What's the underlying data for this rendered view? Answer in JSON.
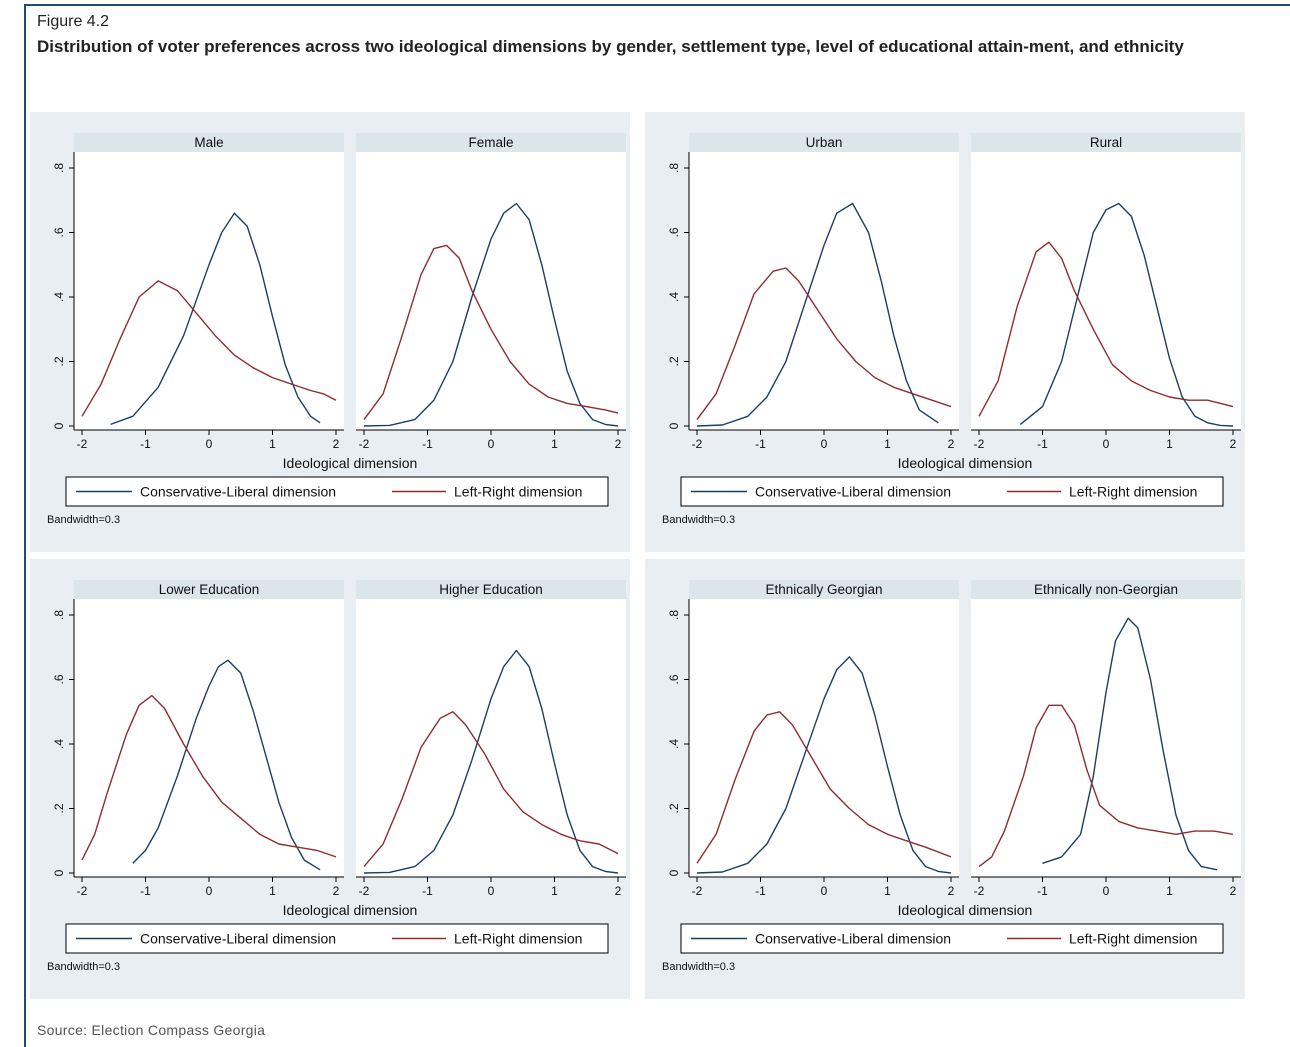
{
  "figure": {
    "label": "Figure 4.2",
    "title": "Distribution of voter preferences across two ideological dimensions by gender, settlement type, level of educational attain-ment, and ethnicity",
    "source": "Source: Election Compass Georgia"
  },
  "colors": {
    "background": "#e8eef1",
    "strip": "#dbe5ea",
    "conservative_liberal": "#1a3f66",
    "left_right": "#8f2d2d",
    "frame": "#1f4e6e"
  },
  "chart_data": [
    {
      "type": "line",
      "group": "gender",
      "xlabel": "Ideological dimension",
      "legend": [
        "Conservative-Liberal dimension",
        "Left-Right dimension"
      ],
      "note": "Bandwidth=0.3",
      "xlim": [
        -2,
        2
      ],
      "ylim": [
        0,
        0.8
      ],
      "xticks": [
        "-2",
        "-1",
        "0",
        "1",
        "2"
      ],
      "yticks": [
        "0",
        ".2",
        ".4",
        ".6",
        ".8"
      ],
      "panels": [
        {
          "title": "Male",
          "series": [
            {
              "name": "Conservative-Liberal dimension",
              "x": [
                -1.55,
                -1.2,
                -0.8,
                -0.4,
                0.0,
                0.2,
                0.4,
                0.6,
                0.8,
                1.0,
                1.2,
                1.4,
                1.6,
                1.75
              ],
              "y": [
                0.005,
                0.03,
                0.12,
                0.28,
                0.5,
                0.6,
                0.66,
                0.62,
                0.5,
                0.34,
                0.19,
                0.09,
                0.03,
                0.01
              ]
            },
            {
              "name": "Left-Right dimension",
              "x": [
                -2.0,
                -1.7,
                -1.4,
                -1.1,
                -0.8,
                -0.5,
                -0.2,
                0.1,
                0.4,
                0.7,
                1.0,
                1.3,
                1.6,
                1.8,
                2.0
              ],
              "y": [
                0.03,
                0.13,
                0.27,
                0.4,
                0.45,
                0.42,
                0.35,
                0.28,
                0.22,
                0.18,
                0.15,
                0.13,
                0.11,
                0.1,
                0.08
              ]
            }
          ]
        },
        {
          "title": "Female",
          "series": [
            {
              "name": "Conservative-Liberal dimension",
              "x": [
                -2.0,
                -1.6,
                -1.2,
                -0.9,
                -0.6,
                -0.3,
                0.0,
                0.2,
                0.4,
                0.6,
                0.8,
                1.0,
                1.2,
                1.4,
                1.6,
                1.8,
                2.0
              ],
              "y": [
                0.0,
                0.002,
                0.02,
                0.08,
                0.2,
                0.4,
                0.58,
                0.66,
                0.69,
                0.64,
                0.5,
                0.33,
                0.17,
                0.07,
                0.02,
                0.005,
                0.0
              ]
            },
            {
              "name": "Left-Right dimension",
              "x": [
                -2.0,
                -1.7,
                -1.4,
                -1.1,
                -0.9,
                -0.7,
                -0.5,
                -0.3,
                0.0,
                0.3,
                0.6,
                0.9,
                1.2,
                1.5,
                1.8,
                2.0
              ],
              "y": [
                0.02,
                0.1,
                0.28,
                0.47,
                0.55,
                0.56,
                0.52,
                0.42,
                0.3,
                0.2,
                0.13,
                0.09,
                0.07,
                0.06,
                0.05,
                0.04
              ]
            }
          ]
        }
      ]
    },
    {
      "type": "line",
      "group": "settlement type",
      "xlabel": "Ideological dimension",
      "legend": [
        "Conservative-Liberal dimension",
        "Left-Right dimension"
      ],
      "note": "Bandwidth=0.3",
      "xlim": [
        -2,
        2
      ],
      "ylim": [
        0,
        0.8
      ],
      "xticks": [
        "-2",
        "-1",
        "0",
        "1",
        "2"
      ],
      "yticks": [
        "0",
        ".2",
        ".4",
        ".6",
        ".8"
      ],
      "panels": [
        {
          "title": "Urban",
          "series": [
            {
              "name": "Conservative-Liberal dimension",
              "x": [
                -2.0,
                -1.6,
                -1.2,
                -0.9,
                -0.6,
                -0.3,
                0.0,
                0.2,
                0.45,
                0.7,
                0.9,
                1.1,
                1.3,
                1.5,
                1.8
              ],
              "y": [
                0.0,
                0.003,
                0.03,
                0.09,
                0.2,
                0.38,
                0.56,
                0.66,
                0.69,
                0.6,
                0.45,
                0.28,
                0.14,
                0.05,
                0.01
              ]
            },
            {
              "name": "Left-Right dimension",
              "x": [
                -2.0,
                -1.7,
                -1.4,
                -1.1,
                -0.8,
                -0.6,
                -0.4,
                -0.1,
                0.2,
                0.5,
                0.8,
                1.1,
                1.4,
                1.7,
                2.0
              ],
              "y": [
                0.02,
                0.1,
                0.25,
                0.41,
                0.48,
                0.49,
                0.45,
                0.36,
                0.27,
                0.2,
                0.15,
                0.12,
                0.1,
                0.08,
                0.06
              ]
            }
          ]
        },
        {
          "title": "Rural",
          "series": [
            {
              "name": "Conservative-Liberal dimension",
              "x": [
                -1.35,
                -1.0,
                -0.7,
                -0.4,
                -0.2,
                0.0,
                0.2,
                0.4,
                0.6,
                0.8,
                1.0,
                1.2,
                1.4,
                1.6,
                1.8,
                2.0
              ],
              "y": [
                0.005,
                0.06,
                0.2,
                0.44,
                0.6,
                0.67,
                0.69,
                0.65,
                0.53,
                0.37,
                0.21,
                0.09,
                0.03,
                0.01,
                0.002,
                0.0
              ]
            },
            {
              "name": "Left-Right dimension",
              "x": [
                -2.0,
                -1.7,
                -1.4,
                -1.1,
                -0.9,
                -0.7,
                -0.5,
                -0.2,
                0.1,
                0.4,
                0.7,
                1.0,
                1.3,
                1.6,
                2.0
              ],
              "y": [
                0.03,
                0.14,
                0.37,
                0.54,
                0.57,
                0.52,
                0.42,
                0.3,
                0.19,
                0.14,
                0.11,
                0.09,
                0.08,
                0.08,
                0.06
              ]
            }
          ]
        }
      ]
    },
    {
      "type": "line",
      "group": "level of educational attainment",
      "xlabel": "Ideological dimension",
      "legend": [
        "Conservative-Liberal dimension",
        "Left-Right dimension"
      ],
      "note": "Bandwidth=0.3",
      "xlim": [
        -2,
        2
      ],
      "ylim": [
        0,
        0.8
      ],
      "xticks": [
        "-2",
        "-1",
        "0",
        "1",
        "2"
      ],
      "yticks": [
        "0",
        ".2",
        ".4",
        ".6",
        ".8"
      ],
      "panels": [
        {
          "title": "Lower Education",
          "series": [
            {
              "name": "Conservative-Liberal dimension",
              "x": [
                -1.2,
                -1.0,
                -0.8,
                -0.5,
                -0.2,
                0.0,
                0.15,
                0.3,
                0.5,
                0.7,
                0.9,
                1.1,
                1.3,
                1.5,
                1.75
              ],
              "y": [
                0.03,
                0.07,
                0.14,
                0.3,
                0.48,
                0.58,
                0.64,
                0.66,
                0.62,
                0.5,
                0.36,
                0.22,
                0.11,
                0.04,
                0.01
              ]
            },
            {
              "name": "Left-Right dimension",
              "x": [
                -2.0,
                -1.8,
                -1.6,
                -1.3,
                -1.1,
                -0.9,
                -0.7,
                -0.4,
                -0.1,
                0.2,
                0.5,
                0.8,
                1.1,
                1.4,
                1.7,
                2.0
              ],
              "y": [
                0.04,
                0.12,
                0.25,
                0.43,
                0.52,
                0.55,
                0.51,
                0.4,
                0.3,
                0.22,
                0.17,
                0.12,
                0.09,
                0.08,
                0.07,
                0.05
              ]
            }
          ]
        },
        {
          "title": "Higher Education",
          "series": [
            {
              "name": "Conservative-Liberal dimension",
              "x": [
                -2.0,
                -1.6,
                -1.2,
                -0.9,
                -0.6,
                -0.3,
                0.0,
                0.2,
                0.4,
                0.6,
                0.8,
                1.0,
                1.2,
                1.4,
                1.6,
                1.8,
                2.0
              ],
              "y": [
                0.0,
                0.002,
                0.02,
                0.07,
                0.18,
                0.35,
                0.54,
                0.64,
                0.69,
                0.64,
                0.51,
                0.34,
                0.18,
                0.07,
                0.02,
                0.005,
                0.0
              ]
            },
            {
              "name": "Left-Right dimension",
              "x": [
                -2.0,
                -1.7,
                -1.4,
                -1.1,
                -0.8,
                -0.6,
                -0.4,
                -0.1,
                0.2,
                0.5,
                0.8,
                1.1,
                1.4,
                1.7,
                2.0
              ],
              "y": [
                0.02,
                0.09,
                0.23,
                0.39,
                0.48,
                0.5,
                0.46,
                0.37,
                0.26,
                0.19,
                0.15,
                0.12,
                0.1,
                0.09,
                0.06
              ]
            }
          ]
        }
      ]
    },
    {
      "type": "line",
      "group": "ethnicity",
      "xlabel": "Ideological dimension",
      "legend": [
        "Conservative-Liberal dimension",
        "Left-Right dimension"
      ],
      "note": "Bandwidth=0.3",
      "xlim": [
        -2,
        2
      ],
      "ylim": [
        0,
        0.8
      ],
      "xticks": [
        "-2",
        "-1",
        "0",
        "1",
        "2"
      ],
      "yticks": [
        "0",
        ".2",
        ".4",
        ".6",
        ".8"
      ],
      "panels": [
        {
          "title": "Ethnically Georgian",
          "series": [
            {
              "name": "Conservative-Liberal dimension",
              "x": [
                -2.0,
                -1.6,
                -1.2,
                -0.9,
                -0.6,
                -0.3,
                0.0,
                0.2,
                0.4,
                0.6,
                0.8,
                1.0,
                1.2,
                1.4,
                1.6,
                1.8,
                2.0
              ],
              "y": [
                0.0,
                0.003,
                0.03,
                0.09,
                0.2,
                0.37,
                0.54,
                0.63,
                0.67,
                0.62,
                0.49,
                0.33,
                0.18,
                0.07,
                0.02,
                0.005,
                0.0
              ]
            },
            {
              "name": "Left-Right dimension",
              "x": [
                -2.0,
                -1.7,
                -1.4,
                -1.1,
                -0.9,
                -0.7,
                -0.5,
                -0.2,
                0.1,
                0.4,
                0.7,
                1.0,
                1.3,
                1.6,
                2.0
              ],
              "y": [
                0.03,
                0.12,
                0.29,
                0.44,
                0.49,
                0.5,
                0.46,
                0.36,
                0.26,
                0.2,
                0.15,
                0.12,
                0.1,
                0.08,
                0.05
              ]
            }
          ]
        },
        {
          "title": "Ethnically non-Georgian",
          "series": [
            {
              "name": "Conservative-Liberal dimension",
              "x": [
                -1.0,
                -0.7,
                -0.4,
                -0.2,
                0.0,
                0.15,
                0.35,
                0.5,
                0.7,
                0.9,
                1.1,
                1.3,
                1.5,
                1.75
              ],
              "y": [
                0.03,
                0.05,
                0.12,
                0.3,
                0.56,
                0.72,
                0.79,
                0.76,
                0.6,
                0.38,
                0.18,
                0.07,
                0.02,
                0.01
              ]
            },
            {
              "name": "Left-Right dimension",
              "x": [
                -2.0,
                -1.8,
                -1.6,
                -1.3,
                -1.1,
                -0.9,
                -0.7,
                -0.5,
                -0.3,
                -0.1,
                0.2,
                0.5,
                0.8,
                1.1,
                1.4,
                1.7,
                2.0
              ],
              "y": [
                0.02,
                0.05,
                0.13,
                0.3,
                0.45,
                0.52,
                0.52,
                0.46,
                0.32,
                0.21,
                0.16,
                0.14,
                0.13,
                0.12,
                0.13,
                0.13,
                0.12
              ]
            }
          ]
        }
      ]
    }
  ]
}
